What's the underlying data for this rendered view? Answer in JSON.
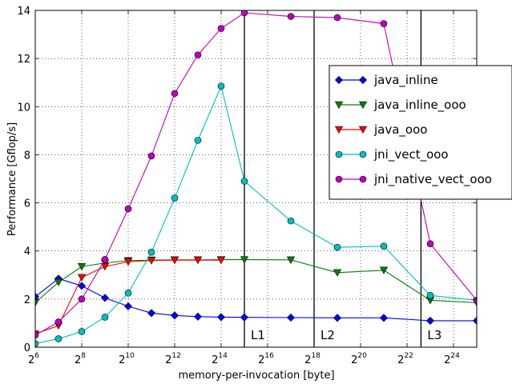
{
  "chart_data": {
    "type": "line",
    "xlabel": "memory-per-invocation [byte]",
    "ylabel": "Performance [Gflop/s]",
    "xscale": "log2",
    "xlim_exponent": [
      6,
      25
    ],
    "ylim": [
      0,
      14
    ],
    "grid": true,
    "grid_style": "dotted",
    "legend_position": "upper-right",
    "x_ticks": [
      {
        "base": "2",
        "exp": "6",
        "value": 6
      },
      {
        "base": "2",
        "exp": "8",
        "value": 8
      },
      {
        "base": "2",
        "exp": "10",
        "value": 10
      },
      {
        "base": "2",
        "exp": "12",
        "value": 12
      },
      {
        "base": "2",
        "exp": "14",
        "value": 14
      },
      {
        "base": "2",
        "exp": "16",
        "value": 16
      },
      {
        "base": "2",
        "exp": "18",
        "value": 18
      },
      {
        "base": "2",
        "exp": "20",
        "value": 20
      },
      {
        "base": "2",
        "exp": "22",
        "value": 22
      },
      {
        "base": "2",
        "exp": "24",
        "value": 24
      }
    ],
    "y_ticks": [
      "0",
      "2",
      "4",
      "6",
      "8",
      "10",
      "12",
      "14"
    ],
    "cache_lines": [
      {
        "label": "L1",
        "x_exponent": 15
      },
      {
        "label": "L2",
        "x_exponent": 18
      },
      {
        "label": "L3",
        "x_exponent": 22.6
      }
    ],
    "series": [
      {
        "name": "java_inline",
        "color": "#0000ff",
        "marker": "diamond",
        "x_exponent": [
          6,
          7,
          8,
          9,
          10,
          11,
          12,
          13,
          14,
          15,
          17,
          19,
          21,
          23,
          25
        ],
        "values": [
          2.1,
          2.85,
          2.55,
          2.05,
          1.7,
          1.42,
          1.32,
          1.27,
          1.25,
          1.24,
          1.23,
          1.22,
          1.22,
          1.1,
          1.1
        ]
      },
      {
        "name": "java_inline_ooo",
        "color": "#008000",
        "marker": "triangle-down",
        "x_exponent": [
          6,
          7,
          8,
          9,
          10,
          11,
          12,
          13,
          14,
          15,
          17,
          19,
          21,
          23,
          25
        ],
        "values": [
          1.85,
          2.7,
          3.35,
          3.5,
          3.6,
          3.62,
          3.63,
          3.63,
          3.64,
          3.64,
          3.63,
          3.1,
          3.2,
          1.95,
          1.85
        ]
      },
      {
        "name": "java_ooo",
        "color": "#ff0000",
        "marker": "triangle-down",
        "x_exponent": [
          6,
          7,
          8,
          9,
          10,
          11,
          12,
          13,
          14
        ],
        "values": [
          0.55,
          0.9,
          2.9,
          3.35,
          3.55,
          3.6,
          3.62,
          3.62,
          3.62
        ]
      },
      {
        "name": "jni_vect_ooo",
        "color": "#00bfbf",
        "marker": "circle",
        "x_exponent": [
          6,
          7,
          8,
          9,
          10,
          11,
          12,
          13,
          14,
          15,
          17,
          19,
          21,
          23,
          25
        ],
        "values": [
          0.15,
          0.35,
          0.65,
          1.25,
          2.25,
          3.95,
          6.2,
          8.6,
          10.85,
          6.9,
          5.25,
          4.15,
          4.2,
          2.15,
          1.95
        ]
      },
      {
        "name": "jni_native_vect_ooo",
        "color": "#bf00bf",
        "marker": "circle",
        "x_exponent": [
          6,
          7,
          8,
          9,
          10,
          11,
          12,
          13,
          14,
          15,
          17,
          19,
          21,
          23,
          25
        ],
        "values": [
          0.5,
          1.05,
          2.0,
          3.65,
          5.75,
          7.95,
          10.55,
          12.15,
          13.25,
          13.9,
          13.75,
          13.7,
          13.45,
          4.3,
          1.95
        ]
      }
    ]
  }
}
